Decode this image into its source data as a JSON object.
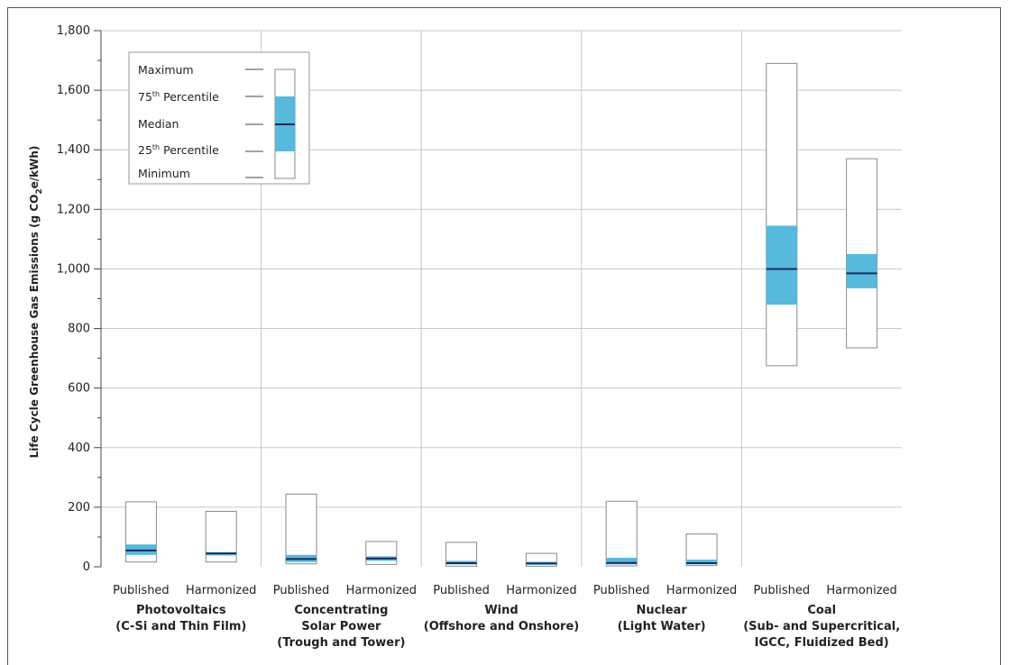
{
  "chart_data": {
    "type": "box",
    "ylabel_parts": [
      "Life Cycle Greenhouse Gas Emissions (g CO",
      "2",
      "e/kWh)"
    ],
    "ylim": [
      0,
      1800
    ],
    "yticks": [
      0,
      200,
      400,
      600,
      800,
      1000,
      1200,
      1400,
      1600,
      1800
    ],
    "ytick_labels": [
      "0",
      "200",
      "400",
      "600",
      "800",
      "1,000",
      "1,200",
      "1,400",
      "1,600",
      "1,800"
    ],
    "grid": "horizontal",
    "colors": {
      "iqr": "#57b9dc",
      "median": "#1b2a5c",
      "box_border": "#8a8a8a",
      "grid": "#c8c8c8",
      "separator": "#c8c8c8"
    },
    "groups": [
      {
        "label_lines": [
          "Photovoltaics",
          "(C-Si and Thin Film)"
        ]
      },
      {
        "label_lines": [
          "Concentrating",
          "Solar Power",
          "(Trough and Tower)"
        ]
      },
      {
        "label_lines": [
          "Wind",
          "(Offshore and Onshore)"
        ]
      },
      {
        "label_lines": [
          "Nuclear",
          "(Light Water)"
        ]
      },
      {
        "label_lines": [
          "Coal",
          "(Sub- and Supercritical,",
          "IGCC, Fluidized Bed)"
        ]
      }
    ],
    "boxes": [
      {
        "group": 0,
        "category": "Published",
        "min": 16,
        "q1": 40,
        "median": 55,
        "q3": 75,
        "max": 218
      },
      {
        "group": 0,
        "category": "Harmonized",
        "min": 16,
        "q1": 38,
        "median": 45,
        "q3": 48,
        "max": 186
      },
      {
        "group": 1,
        "category": "Published",
        "min": 10,
        "q1": 16,
        "median": 26,
        "q3": 40,
        "max": 244
      },
      {
        "group": 1,
        "category": "Harmonized",
        "min": 8,
        "q1": 20,
        "median": 28,
        "q3": 35,
        "max": 85
      },
      {
        "group": 2,
        "category": "Published",
        "min": 2,
        "q1": 8,
        "median": 12,
        "q3": 20,
        "max": 82
      },
      {
        "group": 2,
        "category": "Harmonized",
        "min": 2,
        "q1": 7,
        "median": 11,
        "q3": 17,
        "max": 45
      },
      {
        "group": 3,
        "category": "Published",
        "min": 3,
        "q1": 8,
        "median": 13,
        "q3": 30,
        "max": 220
      },
      {
        "group": 3,
        "category": "Harmonized",
        "min": 4,
        "q1": 8,
        "median": 12,
        "q3": 24,
        "max": 110
      },
      {
        "group": 4,
        "category": "Published",
        "min": 675,
        "q1": 880,
        "median": 1000,
        "q3": 1145,
        "max": 1690
      },
      {
        "group": 4,
        "category": "Harmonized",
        "min": 735,
        "q1": 935,
        "median": 985,
        "q3": 1050,
        "max": 1370
      }
    ],
    "legend": {
      "placement": "top-left",
      "entries": [
        "Maximum",
        "75th Percentile",
        "Median",
        "25th Percentile",
        "Minimum"
      ],
      "percentile_parts": {
        "p75": [
          "75",
          "th",
          " Percentile"
        ],
        "p25": [
          "25",
          "th",
          " Percentile"
        ]
      }
    }
  }
}
